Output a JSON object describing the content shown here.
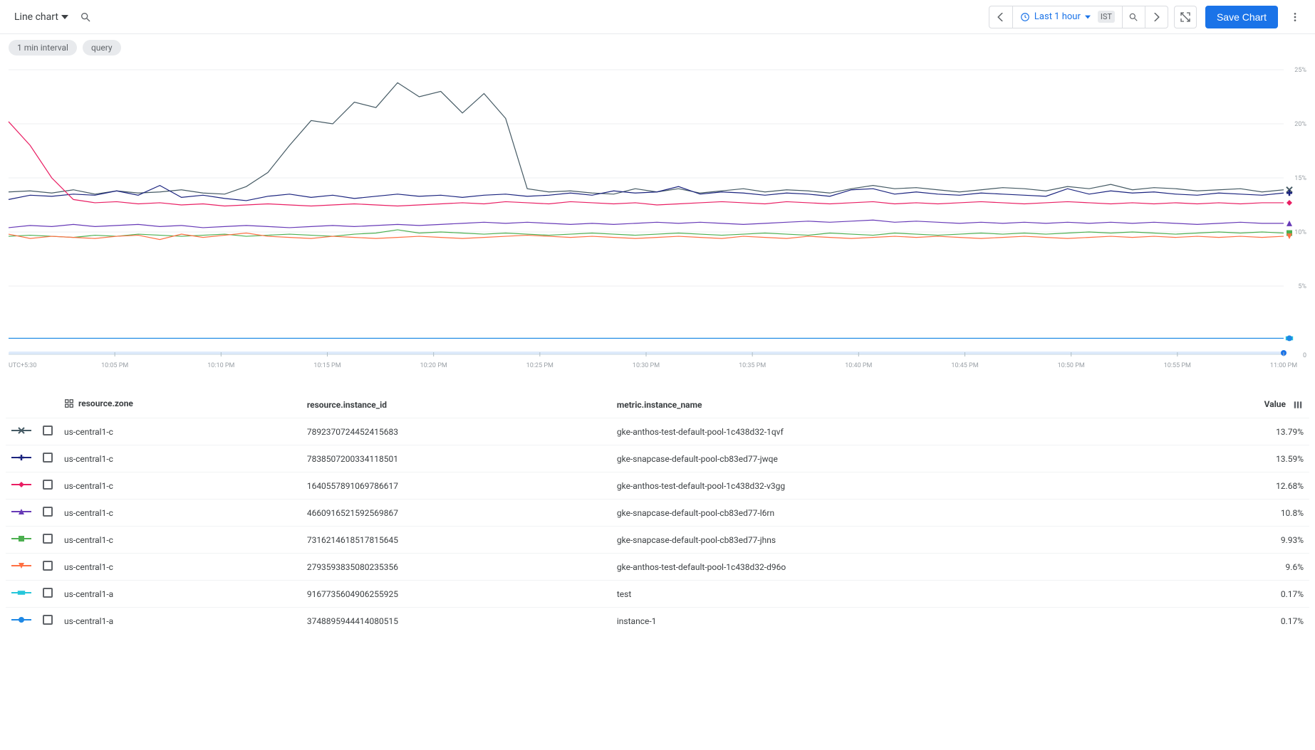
{
  "toolbar": {
    "chart_type": "Line chart",
    "time_range": "Last 1 hour",
    "tz": "IST",
    "save_label": "Save Chart"
  },
  "chips": [
    {
      "label": "1 min interval"
    },
    {
      "label": "query"
    }
  ],
  "chart": {
    "type": "line",
    "background_color": "#ffffff",
    "grid_color": "#eceff1",
    "axis_label_color": "#9aa0a6",
    "y": {
      "min": 0,
      "max": 25,
      "ticks": [
        5,
        10,
        15,
        20,
        25
      ],
      "suffix": "%"
    },
    "x": {
      "tz_label": "UTC+5:30",
      "labels": [
        "10:05 PM",
        "10:10 PM",
        "10:15 PM",
        "10:20 PM",
        "10:25 PM",
        "10:30 PM",
        "10:35 PM",
        "10:40 PM",
        "10:45 PM",
        "10:50 PM",
        "10:55 PM",
        "11:00 PM"
      ],
      "n_points": 60,
      "brush_color": "#bdd7f7"
    },
    "series": [
      {
        "id": "s1",
        "color": "#455a64",
        "marker": "x",
        "data": [
          13.7,
          13.8,
          13.6,
          13.9,
          13.5,
          13.8,
          13.6,
          13.7,
          13.9,
          13.6,
          13.5,
          14.2,
          15.5,
          18.0,
          20.3,
          20.0,
          22.0,
          21.5,
          23.8,
          22.5,
          23.0,
          21.0,
          22.8,
          20.5,
          14.0,
          13.7,
          13.8,
          13.6,
          13.5,
          14.0,
          13.7,
          14.0,
          13.6,
          13.8,
          14.0,
          13.7,
          13.9,
          13.8,
          13.6,
          14.0,
          14.3,
          14.0,
          14.1,
          13.9,
          13.7,
          13.9,
          14.1,
          14.0,
          13.8,
          14.2,
          14.0,
          14.4,
          13.9,
          14.1,
          14.0,
          13.8,
          13.9,
          14.0,
          13.7,
          13.9
        ],
        "end_marker": "x"
      },
      {
        "id": "s2",
        "color": "#1a237e",
        "marker": "plus",
        "data": [
          13.0,
          13.4,
          13.3,
          13.5,
          13.4,
          13.8,
          13.4,
          14.3,
          13.2,
          13.4,
          13.1,
          12.9,
          13.3,
          13.5,
          13.2,
          13.4,
          13.1,
          13.3,
          13.5,
          13.3,
          13.4,
          13.2,
          13.4,
          13.5,
          13.3,
          13.4,
          13.6,
          13.4,
          13.8,
          13.6,
          13.7,
          14.2,
          13.5,
          13.7,
          13.6,
          13.4,
          13.6,
          13.5,
          13.3,
          13.9,
          14.0,
          13.5,
          13.7,
          13.5,
          13.4,
          13.6,
          13.5,
          13.4,
          13.3,
          14.0,
          13.5,
          13.8,
          13.6,
          13.7,
          13.5,
          13.4,
          13.6,
          13.5,
          13.4,
          13.6
        ],
        "end_marker": "plus"
      },
      {
        "id": "s3",
        "color": "#e91e63",
        "marker": "diamond",
        "data": [
          20.2,
          18.0,
          15.0,
          13.0,
          12.7,
          12.8,
          12.6,
          12.7,
          12.5,
          12.6,
          12.4,
          12.5,
          12.6,
          12.5,
          12.4,
          12.5,
          12.6,
          12.5,
          12.4,
          12.5,
          12.6,
          12.7,
          12.6,
          12.8,
          12.7,
          12.6,
          12.8,
          12.7,
          12.6,
          12.7,
          12.5,
          12.6,
          12.7,
          12.8,
          12.7,
          12.6,
          12.8,
          12.7,
          12.6,
          12.7,
          12.8,
          12.6,
          12.7,
          12.6,
          12.7,
          12.8,
          12.7,
          12.6,
          12.7,
          12.8,
          12.7,
          12.6,
          12.7,
          12.6,
          12.7,
          12.6,
          12.7,
          12.6,
          12.7,
          12.7
        ],
        "end_marker": "diamond"
      },
      {
        "id": "s4",
        "color": "#673ab7",
        "marker": "triangle",
        "data": [
          10.4,
          10.6,
          10.5,
          10.7,
          10.5,
          10.6,
          10.7,
          10.5,
          10.6,
          10.4,
          10.5,
          10.6,
          10.5,
          10.4,
          10.5,
          10.6,
          10.5,
          10.6,
          10.7,
          10.6,
          10.7,
          10.8,
          10.9,
          10.8,
          10.9,
          10.8,
          10.7,
          10.8,
          10.7,
          10.8,
          10.9,
          10.8,
          10.9,
          10.8,
          10.7,
          10.8,
          10.9,
          11.0,
          10.9,
          11.0,
          11.1,
          10.9,
          11.0,
          10.9,
          10.8,
          10.9,
          10.8,
          10.9,
          10.8,
          10.9,
          10.8,
          10.9,
          10.8,
          10.9,
          10.8,
          10.7,
          10.8,
          10.9,
          10.8,
          10.8
        ],
        "end_marker": "triangle"
      },
      {
        "id": "s5",
        "color": "#4caf50",
        "marker": "square",
        "data": [
          9.6,
          9.7,
          9.6,
          9.5,
          9.7,
          9.6,
          9.8,
          9.7,
          9.6,
          9.7,
          9.8,
          9.6,
          9.7,
          9.8,
          9.7,
          9.6,
          9.8,
          9.9,
          10.2,
          9.9,
          10.0,
          9.9,
          9.8,
          9.9,
          9.8,
          9.7,
          9.8,
          9.9,
          9.8,
          9.7,
          9.8,
          9.9,
          9.8,
          9.7,
          9.8,
          9.9,
          9.8,
          9.7,
          9.9,
          9.8,
          9.7,
          9.9,
          9.8,
          9.7,
          9.8,
          9.9,
          9.8,
          9.9,
          9.8,
          9.9,
          10.0,
          9.9,
          10.0,
          9.9,
          9.8,
          9.9,
          10.0,
          9.9,
          10.0,
          9.9
        ],
        "end_marker": "square"
      },
      {
        "id": "s6",
        "color": "#ff7043",
        "marker": "triangle-down",
        "data": [
          9.8,
          9.4,
          9.6,
          9.5,
          9.4,
          9.6,
          9.7,
          9.3,
          9.8,
          9.5,
          9.7,
          9.9,
          9.6,
          9.5,
          9.4,
          9.6,
          9.5,
          9.4,
          9.5,
          9.6,
          9.5,
          9.4,
          9.5,
          9.6,
          9.7,
          9.6,
          9.5,
          9.6,
          9.5,
          9.4,
          9.5,
          9.6,
          9.5,
          9.4,
          9.6,
          9.5,
          9.4,
          9.6,
          9.5,
          9.4,
          9.5,
          9.6,
          9.5,
          9.6,
          9.5,
          9.4,
          9.5,
          9.6,
          9.5,
          9.4,
          9.5,
          9.6,
          9.5,
          9.6,
          9.5,
          9.6,
          9.5,
          9.6,
          9.5,
          9.6
        ],
        "end_marker": "triangle-down"
      },
      {
        "id": "s7",
        "color": "#26c6da",
        "marker": "rect",
        "data": [
          0.17,
          0.17,
          0.17,
          0.17,
          0.17,
          0.17,
          0.17,
          0.17,
          0.17,
          0.17,
          0.17,
          0.17,
          0.17,
          0.17,
          0.17,
          0.17,
          0.17,
          0.17,
          0.17,
          0.17,
          0.17,
          0.17,
          0.17,
          0.17,
          0.17,
          0.17,
          0.17,
          0.17,
          0.17,
          0.17,
          0.17,
          0.17,
          0.17,
          0.17,
          0.17,
          0.17,
          0.17,
          0.17,
          0.17,
          0.17,
          0.17,
          0.17,
          0.17,
          0.17,
          0.17,
          0.17,
          0.17,
          0.17,
          0.17,
          0.17,
          0.17,
          0.17,
          0.17,
          0.17,
          0.17,
          0.17,
          0.17,
          0.17,
          0.17,
          0.17
        ],
        "end_marker": "rect"
      },
      {
        "id": "s8",
        "color": "#1e88e5",
        "marker": "circle",
        "data": [
          0.17,
          0.17,
          0.17,
          0.17,
          0.17,
          0.17,
          0.17,
          0.17,
          0.17,
          0.17,
          0.17,
          0.17,
          0.17,
          0.17,
          0.17,
          0.17,
          0.17,
          0.17,
          0.17,
          0.17,
          0.17,
          0.17,
          0.17,
          0.17,
          0.17,
          0.17,
          0.17,
          0.17,
          0.17,
          0.17,
          0.17,
          0.17,
          0.17,
          0.17,
          0.17,
          0.17,
          0.17,
          0.17,
          0.17,
          0.17,
          0.17,
          0.17,
          0.17,
          0.17,
          0.17,
          0.17,
          0.17,
          0.17,
          0.17,
          0.17,
          0.17,
          0.17,
          0.17,
          0.17,
          0.17,
          0.17,
          0.17,
          0.17,
          0.17,
          0.17
        ],
        "end_marker": "circle"
      }
    ]
  },
  "table": {
    "headers": {
      "zone": "resource.zone",
      "instance_id": "resource.instance_id",
      "instance_name": "metric.instance_name",
      "value": "Value"
    },
    "rows": [
      {
        "series": "s1",
        "zone": "us-central1-c",
        "instance_id": "7892370724452415683",
        "instance_name": "gke-anthos-test-default-pool-1c438d32-1qvf",
        "value": "13.79%"
      },
      {
        "series": "s2",
        "zone": "us-central1-c",
        "instance_id": "7838507200334118501",
        "instance_name": "gke-snapcase-default-pool-cb83ed77-jwqe",
        "value": "13.59%"
      },
      {
        "series": "s3",
        "zone": "us-central1-c",
        "instance_id": "1640557891069786617",
        "instance_name": "gke-anthos-test-default-pool-1c438d32-v3gg",
        "value": "12.68%"
      },
      {
        "series": "s4",
        "zone": "us-central1-c",
        "instance_id": "4660916521592569867",
        "instance_name": "gke-snapcase-default-pool-cb83ed77-l6rn",
        "value": "10.8%"
      },
      {
        "series": "s5",
        "zone": "us-central1-c",
        "instance_id": "7316214618517815645",
        "instance_name": "gke-snapcase-default-pool-cb83ed77-jhns",
        "value": "9.93%"
      },
      {
        "series": "s6",
        "zone": "us-central1-c",
        "instance_id": "2793593835080235356",
        "instance_name": "gke-anthos-test-default-pool-1c438d32-d96o",
        "value": "9.6%"
      },
      {
        "series": "s7",
        "zone": "us-central1-a",
        "instance_id": "9167735604906255925",
        "instance_name": "test",
        "value": "0.17%"
      },
      {
        "series": "s8",
        "zone": "us-central1-a",
        "instance_id": "3748895944414080515",
        "instance_name": "instance-1",
        "value": "0.17%"
      }
    ]
  }
}
